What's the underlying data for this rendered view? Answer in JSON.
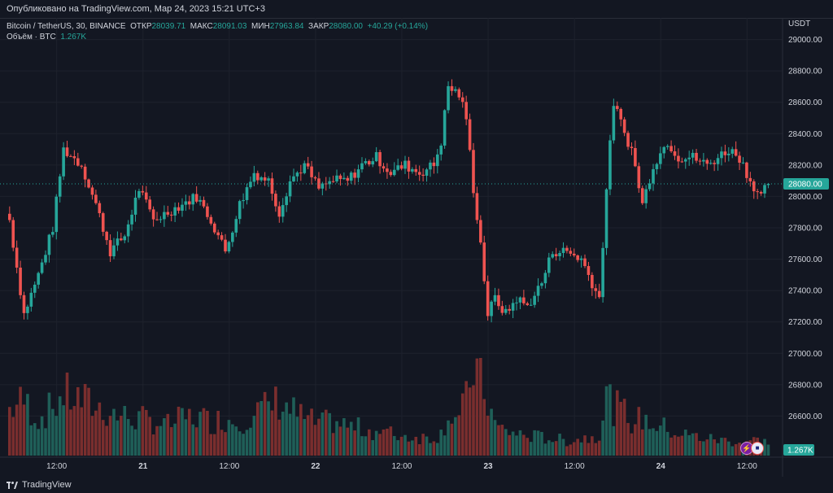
{
  "header": {
    "published": "Опубликовано на TradingView.com, Мар 24, 2023 15:21 UTC+3"
  },
  "legend": {
    "symbol": "Bitcoin / TetherUS, 30, BINANCE",
    "open_label": "ОТКР",
    "open_value": "28039.71",
    "high_label": "МАКС",
    "high_value": "28091.03",
    "low_label": "МИН",
    "low_value": "27963.84",
    "close_label": "ЗАКР",
    "close_value": "28080.00",
    "change": "+40.29 (+0.14%)",
    "volume_label": "Объём · BTC",
    "volume_value": "1.267K"
  },
  "footer": {
    "brand": "TradingView"
  },
  "colors": {
    "background": "#131722",
    "up": "#26a69a",
    "down": "#ef5350",
    "grid": "#1e222d",
    "text": "#d1d4dc",
    "last_price": "#26a69a"
  },
  "chart_data": {
    "type": "candlestick",
    "symbol": "Bitcoin / TetherUS, 30, BINANCE",
    "currency": "USDT",
    "ylim": [
      26400,
      29200
    ],
    "y_ticks": [
      "29000.00",
      "28800.00",
      "28600.00",
      "28400.00",
      "28200.00",
      "28000.00",
      "27800.00",
      "27600.00",
      "27400.00",
      "27200.00",
      "27000.00",
      "26800.00",
      "26600.00"
    ],
    "x_ticks": [
      {
        "label": "12:00",
        "bar": 13
      },
      {
        "label": "21",
        "bar": 37
      },
      {
        "label": "22",
        "bar": 85
      },
      {
        "label": "12:00",
        "bar": 61
      },
      {
        "label": "12:00",
        "bar": 109
      },
      {
        "label": "23",
        "bar": 133
      },
      {
        "label": "12:00",
        "bar": 157
      },
      {
        "label": "24",
        "bar": 181
      },
      {
        "label": "12:00",
        "bar": 205
      }
    ],
    "last_price": 28080,
    "last_price_label": "28080.00",
    "last_volume_label": "1.267K",
    "anchors": [
      [
        0,
        27850,
        38
      ],
      [
        4,
        27250,
        45
      ],
      [
        8,
        27500,
        30
      ],
      [
        12,
        27800,
        40
      ],
      [
        15,
        28300,
        50
      ],
      [
        20,
        28200,
        45
      ],
      [
        24,
        27950,
        40
      ],
      [
        28,
        27650,
        35
      ],
      [
        32,
        27750,
        32
      ],
      [
        36,
        28050,
        30
      ],
      [
        40,
        27850,
        28
      ],
      [
        44,
        27900,
        25
      ],
      [
        48,
        27950,
        30
      ],
      [
        52,
        28000,
        32
      ],
      [
        56,
        27850,
        28
      ],
      [
        60,
        27650,
        30
      ],
      [
        64,
        27950,
        28
      ],
      [
        68,
        28150,
        35
      ],
      [
        72,
        28100,
        40
      ],
      [
        75,
        27900,
        45
      ],
      [
        78,
        28100,
        38
      ],
      [
        82,
        28200,
        30
      ],
      [
        86,
        28050,
        26
      ],
      [
        90,
        28100,
        28
      ],
      [
        94,
        28100,
        24
      ],
      [
        98,
        28200,
        22
      ],
      [
        102,
        28250,
        20
      ],
      [
        106,
        28150,
        18
      ],
      [
        110,
        28200,
        16
      ],
      [
        114,
        28150,
        15
      ],
      [
        118,
        28200,
        15
      ],
      [
        120,
        28350,
        18
      ],
      [
        122,
        28700,
        35
      ],
      [
        125,
        28650,
        30
      ],
      [
        127,
        28500,
        45
      ],
      [
        129,
        28050,
        75
      ],
      [
        131,
        27700,
        60
      ],
      [
        133,
        27250,
        45
      ],
      [
        135,
        27350,
        25
      ],
      [
        138,
        27250,
        20
      ],
      [
        141,
        27350,
        18
      ],
      [
        144,
        27300,
        16
      ],
      [
        148,
        27450,
        15
      ],
      [
        151,
        27650,
        14
      ],
      [
        155,
        27650,
        12
      ],
      [
        159,
        27600,
        14
      ],
      [
        162,
        27450,
        16
      ],
      [
        164,
        27350,
        18
      ],
      [
        166,
        28050,
        50
      ],
      [
        168,
        28600,
        40
      ],
      [
        171,
        28400,
        35
      ],
      [
        173,
        28300,
        28
      ],
      [
        176,
        27950,
        30
      ],
      [
        179,
        28200,
        26
      ],
      [
        183,
        28350,
        22
      ],
      [
        186,
        28250,
        18
      ],
      [
        190,
        28250,
        16
      ],
      [
        194,
        28200,
        14
      ],
      [
        197,
        28250,
        13
      ],
      [
        200,
        28300,
        12
      ],
      [
        203,
        28250,
        11
      ],
      [
        206,
        28100,
        12
      ],
      [
        209,
        28000,
        13
      ],
      [
        211,
        28080,
        9
      ]
    ],
    "bar_count": 212
  }
}
